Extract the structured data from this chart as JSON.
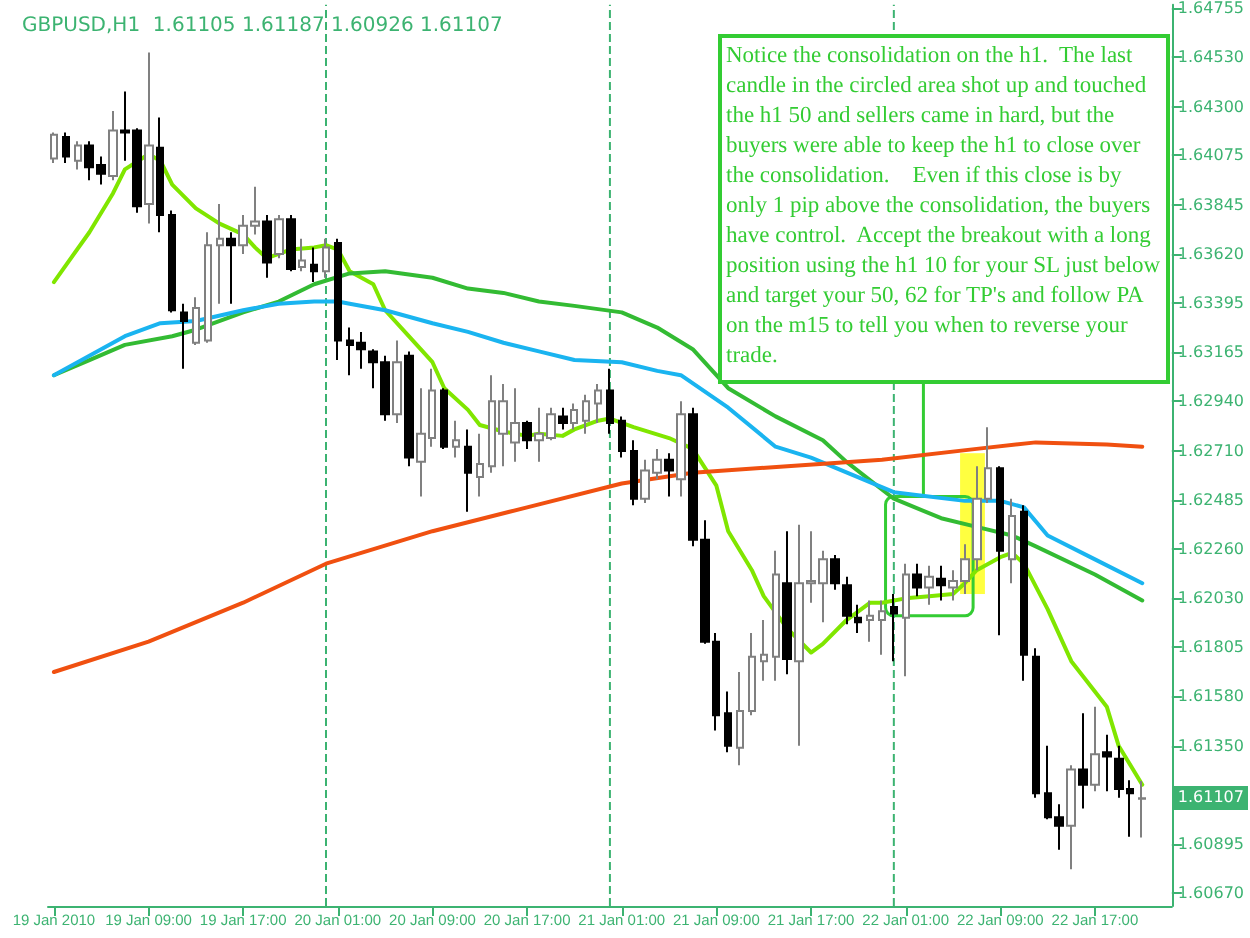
{
  "chart_data": {
    "type": "candlestick",
    "title": "GBPUSD,H1  1.61105 1.61187 1.60926 1.61107",
    "annotations": [
      "Notice the consolidation on the h1.  The last candle in the circled area shot up and touched the h1 50 and sellers came in hard, but the buyers were able to keep the h1 to close over the consolidation.    Even if this close is by only 1 pip above the consolidation, the buyers have control.  Accept the breakout with a long position using the h1 10 for your SL just below and target your 50, 62 for TP's and follow PA on the m15 to tell you when to reverse your trade.",
      {
        "text": "1.61107",
        "y": 1.61107
      }
    ],
    "x": [
      "2010-01-19T01:00",
      "2010-01-19T02:00",
      "2010-01-19T03:00",
      "2010-01-19T04:00",
      "2010-01-19T05:00",
      "2010-01-19T06:00",
      "2010-01-19T07:00",
      "2010-01-19T08:00",
      "2010-01-19T09:00",
      "2010-01-19T10:00",
      "2010-01-19T11:00",
      "2010-01-19T12:00",
      "2010-01-19T13:00",
      "2010-01-19T14:00",
      "2010-01-19T15:00",
      "2010-01-19T16:00",
      "2010-01-19T17:00",
      "2010-01-19T18:00",
      "2010-01-19T19:00",
      "2010-01-19T20:00",
      "2010-01-19T21:00",
      "2010-01-19T22:00",
      "2010-01-19T23:00",
      "2010-01-20T00:00",
      "2010-01-20T01:00",
      "2010-01-20T02:00",
      "2010-01-20T03:00",
      "2010-01-20T04:00",
      "2010-01-20T05:00",
      "2010-01-20T06:00",
      "2010-01-20T07:00",
      "2010-01-20T08:00",
      "2010-01-20T09:00",
      "2010-01-20T10:00",
      "2010-01-20T11:00",
      "2010-01-20T12:00",
      "2010-01-20T13:00",
      "2010-01-20T14:00",
      "2010-01-20T15:00",
      "2010-01-20T16:00",
      "2010-01-20T17:00",
      "2010-01-20T18:00",
      "2010-01-20T19:00",
      "2010-01-20T20:00",
      "2010-01-20T21:00",
      "2010-01-20T22:00",
      "2010-01-20T23:00",
      "2010-01-21T00:00",
      "2010-01-21T01:00",
      "2010-01-21T02:00",
      "2010-01-21T03:00",
      "2010-01-21T04:00",
      "2010-01-21T05:00",
      "2010-01-21T06:00",
      "2010-01-21T07:00",
      "2010-01-21T08:00",
      "2010-01-21T09:00",
      "2010-01-21T10:00",
      "2010-01-21T11:00",
      "2010-01-21T12:00",
      "2010-01-21T13:00",
      "2010-01-21T14:00",
      "2010-01-21T15:00",
      "2010-01-21T16:00",
      "2010-01-21T17:00",
      "2010-01-21T18:00",
      "2010-01-21T19:00",
      "2010-01-21T20:00",
      "2010-01-21T21:00",
      "2010-01-21T22:00",
      "2010-01-21T23:00",
      "2010-01-22T00:00",
      "2010-01-22T01:00",
      "2010-01-22T02:00",
      "2010-01-22T03:00",
      "2010-01-22T04:00",
      "2010-01-22T05:00",
      "2010-01-22T06:00",
      "2010-01-22T07:00",
      "2010-01-22T08:00",
      "2010-01-22T09:00",
      "2010-01-22T10:00",
      "2010-01-22T11:00",
      "2010-01-22T12:00",
      "2010-01-22T13:00",
      "2010-01-22T14:00",
      "2010-01-22T15:00",
      "2010-01-22T16:00",
      "2010-01-22T17:00",
      "2010-01-22T18:00",
      "2010-01-22T19:00",
      "2010-01-22T20:00",
      "2010-01-22T21:00"
    ],
    "ohlc": [
      [
        1.6406,
        1.6418,
        1.6404,
        1.6417
      ],
      [
        1.6416,
        1.6418,
        1.6404,
        1.6407
      ],
      [
        1.6405,
        1.6414,
        1.6401,
        1.6412
      ],
      [
        1.6412,
        1.6414,
        1.6396,
        1.6402
      ],
      [
        1.6403,
        1.6407,
        1.6394,
        1.6399
      ],
      [
        1.6398,
        1.6428,
        1.6396,
        1.6419
      ],
      [
        1.6419,
        1.6437,
        1.6405,
        1.6418
      ],
      [
        1.6419,
        1.642,
        1.6381,
        1.6384
      ],
      [
        1.6385,
        1.6455,
        1.6376,
        1.6412
      ],
      [
        1.6411,
        1.6425,
        1.6372,
        1.638
      ],
      [
        1.638,
        1.6382,
        1.6335,
        1.6336
      ],
      [
        1.6335,
        1.6339,
        1.6309,
        1.6331
      ],
      [
        1.6321,
        1.6342,
        1.632,
        1.6337
      ],
      [
        1.6322,
        1.6372,
        1.6321,
        1.6366
      ],
      [
        1.6366,
        1.6385,
        1.6339,
        1.6369
      ],
      [
        1.6369,
        1.6372,
        1.6339,
        1.6366
      ],
      [
        1.6366,
        1.638,
        1.6362,
        1.6375
      ],
      [
        1.6375,
        1.6393,
        1.6371,
        1.6377
      ],
      [
        1.6377,
        1.638,
        1.6351,
        1.6358
      ],
      [
        1.6362,
        1.638,
        1.636,
        1.6378
      ],
      [
        1.6378,
        1.638,
        1.6354,
        1.6355
      ],
      [
        1.6356,
        1.6369,
        1.6354,
        1.6359
      ],
      [
        1.6357,
        1.6365,
        1.6349,
        1.6354
      ],
      [
        1.6354,
        1.6369,
        1.6351,
        1.6365
      ],
      [
        1.6367,
        1.6369,
        1.6313,
        1.6322
      ],
      [
        1.6322,
        1.6328,
        1.6306,
        1.632
      ],
      [
        1.6321,
        1.6326,
        1.6309,
        1.6318
      ],
      [
        1.6317,
        1.6318,
        1.63,
        1.6312
      ],
      [
        1.6312,
        1.6315,
        1.6285,
        1.6288
      ],
      [
        1.6288,
        1.6322,
        1.6284,
        1.6312
      ],
      [
        1.6315,
        1.6317,
        1.6264,
        1.6268
      ],
      [
        1.6266,
        1.63,
        1.625,
        1.6279
      ],
      [
        1.6277,
        1.6309,
        1.6273,
        1.6299
      ],
      [
        1.6299,
        1.63,
        1.6272,
        1.6273
      ],
      [
        1.6273,
        1.6285,
        1.6268,
        1.6276
      ],
      [
        1.6273,
        1.6281,
        1.6243,
        1.6261
      ],
      [
        1.6259,
        1.6279,
        1.625,
        1.6265
      ],
      [
        1.6264,
        1.6306,
        1.6261,
        1.6294
      ],
      [
        1.6279,
        1.6302,
        1.6264,
        1.6294
      ],
      [
        1.6275,
        1.63,
        1.6266,
        1.6284
      ],
      [
        1.6284,
        1.6285,
        1.6272,
        1.6276
      ],
      [
        1.6276,
        1.6291,
        1.6266,
        1.6279
      ],
      [
        1.6277,
        1.6291,
        1.6276,
        1.6288
      ],
      [
        1.6287,
        1.6291,
        1.6281,
        1.6284
      ],
      [
        1.6284,
        1.6293,
        1.6281,
        1.629
      ],
      [
        1.6285,
        1.6297,
        1.6279,
        1.6294
      ],
      [
        1.6293,
        1.6302,
        1.6284,
        1.6299
      ],
      [
        1.6299,
        1.6309,
        1.6279,
        1.6284
      ],
      [
        1.6285,
        1.6287,
        1.6268,
        1.6271
      ],
      [
        1.6271,
        1.6276,
        1.6246,
        1.6249
      ],
      [
        1.6249,
        1.6267,
        1.6247,
        1.6262
      ],
      [
        1.6261,
        1.6272,
        1.6258,
        1.6267
      ],
      [
        1.6267,
        1.627,
        1.625,
        1.6262
      ],
      [
        1.6258,
        1.6294,
        1.625,
        1.6288
      ],
      [
        1.6288,
        1.6291,
        1.6227,
        1.623
      ],
      [
        1.623,
        1.6239,
        1.6182,
        1.6183
      ],
      [
        1.6183,
        1.6187,
        1.6142,
        1.6149
      ],
      [
        1.615,
        1.616,
        1.6132,
        1.6135
      ],
      [
        1.6134,
        1.6169,
        1.6126,
        1.6151
      ],
      [
        1.6151,
        1.6187,
        1.6149,
        1.6176
      ],
      [
        1.6174,
        1.6193,
        1.6165,
        1.6177
      ],
      [
        1.6176,
        1.6225,
        1.6165,
        1.6214
      ],
      [
        1.621,
        1.6234,
        1.6168,
        1.6175
      ],
      [
        1.6174,
        1.6237,
        1.6135,
        1.621
      ],
      [
        1.621,
        1.6234,
        1.6201,
        1.6211
      ],
      [
        1.621,
        1.6225,
        1.6192,
        1.6221
      ],
      [
        1.6221,
        1.6223,
        1.6207,
        1.621
      ],
      [
        1.6209,
        1.6213,
        1.6191,
        1.6195
      ],
      [
        1.6194,
        1.62,
        1.6187,
        1.6192
      ],
      [
        1.6193,
        1.6202,
        1.6183,
        1.6195
      ],
      [
        1.6193,
        1.6202,
        1.6177,
        1.6197
      ],
      [
        1.6199,
        1.6205,
        1.6174,
        1.6196
      ],
      [
        1.6194,
        1.6219,
        1.6167,
        1.6214
      ],
      [
        1.6214,
        1.6219,
        1.6204,
        1.6208
      ],
      [
        1.6208,
        1.6218,
        1.62,
        1.6213
      ],
      [
        1.6212,
        1.6218,
        1.6202,
        1.6209
      ],
      [
        1.6208,
        1.6216,
        1.6202,
        1.6211
      ],
      [
        1.6211,
        1.6228,
        1.6205,
        1.6221
      ],
      [
        1.6221,
        1.6264,
        1.6216,
        1.6249
      ],
      [
        1.6249,
        1.6282,
        1.6247,
        1.6263
      ],
      [
        1.6263,
        1.6264,
        1.6186,
        1.6225
      ],
      [
        1.6221,
        1.6249,
        1.621,
        1.6241
      ],
      [
        1.6243,
        1.6246,
        1.6165,
        1.6177
      ],
      [
        1.6176,
        1.618,
        1.6111,
        1.6113
      ],
      [
        1.6113,
        1.6135,
        1.6101,
        1.6102
      ],
      [
        1.6102,
        1.6108,
        1.6087,
        1.6098
      ],
      [
        1.6098,
        1.6126,
        1.6078,
        1.6124
      ],
      [
        1.6124,
        1.615,
        1.6106,
        1.6117
      ],
      [
        1.6117,
        1.6153,
        1.6114,
        1.6131
      ],
      [
        1.6132,
        1.614,
        1.6114,
        1.613
      ],
      [
        1.6129,
        1.6135,
        1.6111,
        1.6115
      ],
      [
        1.6115,
        1.6119,
        1.6093,
        1.6113
      ],
      [
        1.61105,
        1.61187,
        1.60926,
        1.61107
      ]
    ],
    "series": [
      {
        "type": "line",
        "color": "#80e600",
        "x": [
          "2010-01-19T01:00",
          "2010-01-19T04:00",
          "2010-01-19T06:00",
          "2010-01-19T07:00",
          "2010-01-19T09:00",
          "2010-01-19T10:00",
          "2010-01-19T11:00",
          "2010-01-19T13:00",
          "2010-01-19T15:00",
          "2010-01-19T17:00",
          "2010-01-19T18:00",
          "2010-01-19T19:00",
          "2010-01-19T21:00",
          "2010-01-19T23:00",
          "2010-01-20T00:00",
          "2010-01-20T01:00",
          "2010-01-20T02:00",
          "2010-01-20T04:00",
          "2010-01-20T05:00",
          "2010-01-20T07:00",
          "2010-01-20T09:00",
          "2010-01-20T10:00",
          "2010-01-20T12:00",
          "2010-01-20T13:00",
          "2010-01-20T15:00",
          "2010-01-20T17:00",
          "2010-01-20T18:00",
          "2010-01-20T20:00",
          "2010-01-20T21:00",
          "2010-01-20T23:00",
          "2010-01-21T00:00",
          "2010-01-21T02:00",
          "2010-01-21T05:00",
          "2010-01-21T07:00",
          "2010-01-21T09:00",
          "2010-01-21T10:00",
          "2010-01-21T12:00",
          "2010-01-21T13:00",
          "2010-01-21T15:00",
          "2010-01-21T17:00",
          "2010-01-21T18:00",
          "2010-01-21T20:00",
          "2010-01-21T22:00",
          "2010-01-21T23:00",
          "2010-01-22T01:00",
          "2010-01-22T03:00",
          "2010-01-22T05:00",
          "2010-01-22T06:00",
          "2010-01-22T07:00",
          "2010-01-22T09:00",
          "2010-01-22T10:00",
          "2010-01-22T11:00",
          "2010-01-22T13:00",
          "2010-01-22T15:00",
          "2010-01-22T18:00",
          "2010-01-22T19:00",
          "2010-01-22T21:00"
        ],
        "values": [
          1.6349,
          1.6372,
          1.639,
          1.6401,
          1.6408,
          1.6405,
          1.6394,
          1.6383,
          1.6376,
          1.6371,
          1.6365,
          1.636,
          1.6364,
          1.6365,
          1.6366,
          1.6364,
          1.6354,
          1.6348,
          1.6336,
          1.6324,
          1.6312,
          1.63,
          1.629,
          1.6283,
          1.628,
          1.6278,
          1.6279,
          1.6278,
          1.6281,
          1.6285,
          1.6286,
          1.6282,
          1.6277,
          1.6272,
          1.6255,
          1.6234,
          1.6216,
          1.6204,
          1.6189,
          1.6178,
          1.6182,
          1.6193,
          1.6201,
          1.6201,
          1.6203,
          1.6204,
          1.6205,
          1.621,
          1.6216,
          1.6222,
          1.6224,
          1.6219,
          1.6198,
          1.6174,
          1.6153,
          1.6135,
          1.6117
        ]
      },
      {
        "type": "line",
        "color": "#33bb33",
        "x": [
          "2010-01-19T01:00",
          "2010-01-19T04:00",
          "2010-01-19T07:00",
          "2010-01-19T11:00",
          "2010-01-19T13:00",
          "2010-01-19T17:00",
          "2010-01-19T20:00",
          "2010-01-19T23:00",
          "2010-01-20T02:00",
          "2010-01-20T05:00",
          "2010-01-20T09:00",
          "2010-01-20T12:00",
          "2010-01-20T15:00",
          "2010-01-20T18:00",
          "2010-01-20T21:00",
          "2010-01-21T01:00",
          "2010-01-21T04:00",
          "2010-01-21T07:00",
          "2010-01-21T10:00",
          "2010-01-21T14:00",
          "2010-01-21T18:00",
          "2010-01-21T20:00",
          "2010-01-22T00:00",
          "2010-01-22T04:00",
          "2010-01-22T07:00",
          "2010-01-22T10:00",
          "2010-01-22T12:00",
          "2010-01-22T17:00",
          "2010-01-22T21:00"
        ],
        "values": [
          1.6306,
          1.6313,
          1.632,
          1.6324,
          1.6327,
          1.6335,
          1.634,
          1.6348,
          1.6353,
          1.6354,
          1.6351,
          1.6346,
          1.6344,
          1.634,
          1.6338,
          1.6335,
          1.6328,
          1.6318,
          1.63,
          1.6287,
          1.6276,
          1.6266,
          1.6249,
          1.624,
          1.6236,
          1.6232,
          1.6227,
          1.6214,
          1.6202
        ]
      },
      {
        "type": "line",
        "color": "#1ab4f0",
        "x": [
          "2010-01-19T01:00",
          "2010-01-19T04:00",
          "2010-01-19T07:00",
          "2010-01-19T10:00",
          "2010-01-19T13:00",
          "2010-01-19T17:00",
          "2010-01-19T20:00",
          "2010-01-19T23:00",
          "2010-01-20T01:00",
          "2010-01-20T02:00",
          "2010-01-20T05:00",
          "2010-01-20T09:00",
          "2010-01-20T12:00",
          "2010-01-20T15:00",
          "2010-01-20T18:00",
          "2010-01-20T21:00",
          "2010-01-21T01:00",
          "2010-01-21T04:00",
          "2010-01-21T06:00",
          "2010-01-21T10:00",
          "2010-01-21T14:00",
          "2010-01-21T17:00",
          "2010-01-22T00:00",
          "2010-01-22T06:00",
          "2010-01-22T09:00",
          "2010-01-22T11:00",
          "2010-01-22T13:00",
          "2010-01-22T17:00",
          "2010-01-22T21:00"
        ],
        "values": [
          1.6306,
          1.6315,
          1.6324,
          1.633,
          1.6331,
          1.6336,
          1.6339,
          1.634,
          1.634,
          1.6339,
          1.6336,
          1.633,
          1.6326,
          1.6321,
          1.6317,
          1.6313,
          1.6312,
          1.6308,
          1.6306,
          1.6291,
          1.6273,
          1.6268,
          1.6252,
          1.6248,
          1.6248,
          1.6245,
          1.6232,
          1.6221,
          1.621
        ]
      },
      {
        "type": "line",
        "color": "#f05010",
        "x": [
          "2010-01-19T01:00",
          "2010-01-19T09:00",
          "2010-01-19T17:00",
          "2010-01-20T00:00",
          "2010-01-20T09:00",
          "2010-01-20T17:00",
          "2010-01-21T01:00",
          "2010-01-21T07:00",
          "2010-01-21T15:00",
          "2010-01-21T23:00",
          "2010-01-22T07:00",
          "2010-01-22T12:00",
          "2010-01-22T18:00",
          "2010-01-22T21:00"
        ],
        "values": [
          1.6169,
          1.6183,
          1.6201,
          1.6219,
          1.6234,
          1.6245,
          1.6256,
          1.6261,
          1.6264,
          1.6267,
          1.6272,
          1.6275,
          1.6274,
          1.6273
        ]
      }
    ],
    "xlim": [
      "2010-01-19T00:30",
      "2010-01-22T23:30"
    ],
    "xticks": [
      {
        "value": "2010-01-19T01:00",
        "label": "19 Jan 2010"
      },
      {
        "value": "2010-01-19T09:00",
        "label": "19 Jan 09:00"
      },
      {
        "value": "2010-01-19T17:00",
        "label": "19 Jan 17:00"
      },
      {
        "value": "2010-01-20T01:00",
        "label": "20 Jan 01:00"
      },
      {
        "value": "2010-01-20T09:00",
        "label": "20 Jan 09:00"
      },
      {
        "value": "2010-01-20T17:00",
        "label": "20 Jan 17:00"
      },
      {
        "value": "2010-01-21T01:00",
        "label": "21 Jan 01:00"
      },
      {
        "value": "2010-01-21T09:00",
        "label": "21 Jan 09:00"
      },
      {
        "value": "2010-01-21T17:00",
        "label": "21 Jan 17:00"
      },
      {
        "value": "2010-01-22T01:00",
        "label": "22 Jan 01:00"
      },
      {
        "value": "2010-01-22T09:00",
        "label": "22 Jan 09:00"
      },
      {
        "value": "2010-01-22T17:00",
        "label": "22 Jan 17:00"
      }
    ],
    "ylim": [
      1.6061,
      1.6477
    ],
    "yticks": [
      {
        "value": 1.64755,
        "label": "1.64755"
      },
      {
        "value": 1.6453,
        "label": "1.64530"
      },
      {
        "value": 1.643,
        "label": "1.64300"
      },
      {
        "value": 1.64075,
        "label": "1.64075"
      },
      {
        "value": 1.63845,
        "label": "1.63845"
      },
      {
        "value": 1.6362,
        "label": "1.63620"
      },
      {
        "value": 1.63395,
        "label": "1.63395"
      },
      {
        "value": 1.63165,
        "label": "1.63165"
      },
      {
        "value": 1.6294,
        "label": "1.62940"
      },
      {
        "value": 1.6271,
        "label": "1.62710"
      },
      {
        "value": 1.62485,
        "label": "1.62485"
      },
      {
        "value": 1.6226,
        "label": "1.62260"
      },
      {
        "value": 1.6203,
        "label": "1.62030"
      },
      {
        "value": 1.61805,
        "label": "1.61805"
      },
      {
        "value": 1.6158,
        "label": "1.61580"
      },
      {
        "value": 1.6135,
        "label": "1.61350"
      },
      {
        "value": 1.60895,
        "label": "1.60895"
      },
      {
        "value": 1.6067,
        "label": "1.60670"
      }
    ],
    "ref_lines": [
      {
        "axis": "x",
        "value": "2010-01-20T00:00",
        "line_style": "dashed",
        "color": "#3cb371"
      },
      {
        "axis": "x",
        "value": "2010-01-21T00:00",
        "line_style": "dashed",
        "color": "#3cb371"
      },
      {
        "axis": "x",
        "value": "2010-01-22T00:00",
        "line_style": "dashed",
        "color": "#3cb371"
      }
    ],
    "marker": "none",
    "grid": false
  }
}
